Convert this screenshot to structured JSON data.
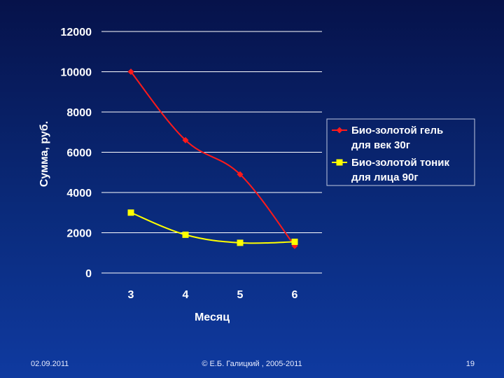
{
  "chart_data": {
    "type": "line",
    "title": "",
    "xlabel": "Месяц",
    "ylabel": "Сумма, руб.",
    "categories": [
      "3",
      "4",
      "5",
      "6"
    ],
    "ylim": [
      0,
      12000
    ],
    "yticks": [
      "0",
      "2000",
      "4000",
      "6000",
      "8000",
      "10000",
      "12000"
    ],
    "grid": true,
    "legend_position": "right",
    "series": [
      {
        "name": "Био-золотой гель для век 30г",
        "name_lines": [
          "Био-золотой гель",
          "для век 30г"
        ],
        "values": [
          10000,
          6600,
          4900,
          1350
        ],
        "color": "#ff1a1a",
        "marker": "diamond"
      },
      {
        "name": "Био-золотой тоник для лица 90г",
        "name_lines": [
          "Био-золотой тоник",
          "для лица 90г"
        ],
        "values": [
          3000,
          1900,
          1500,
          1550
        ],
        "color": "#ffff00",
        "marker": "square"
      }
    ]
  },
  "footer": {
    "date": "02.09.2011",
    "copyright": "© Е.Б. Галицкий , 2005-2011",
    "page": "19"
  }
}
